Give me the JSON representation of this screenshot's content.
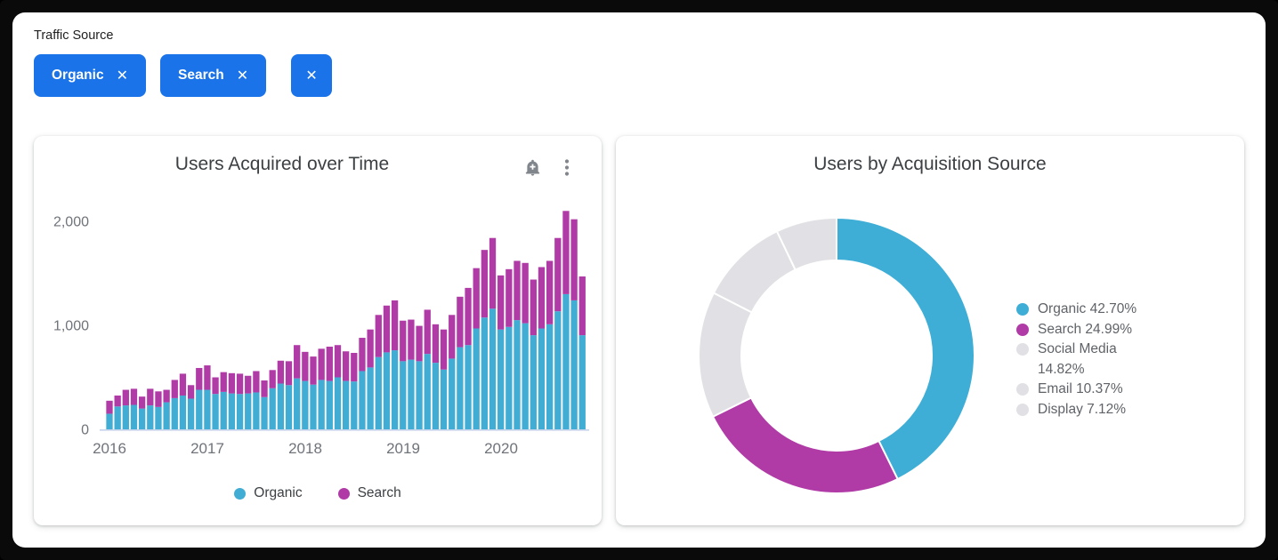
{
  "filter": {
    "label": "Traffic Source",
    "chips": [
      {
        "label": "Organic",
        "close": "✕"
      },
      {
        "label": "Search",
        "close": "✕"
      }
    ],
    "clear_chip_close": "✕"
  },
  "bar_card": {
    "title": "Users Acquired over Time",
    "icons": {
      "alert": "add-alert-bell",
      "menu": "kebab-menu"
    },
    "y_ticks": [
      "0",
      "1,000",
      "2,000"
    ],
    "x_ticks": [
      "2016",
      "2017",
      "2018",
      "2019",
      "2020"
    ],
    "legend": [
      {
        "label": "Organic",
        "color": "#41add4"
      },
      {
        "label": "Search",
        "color": "#b03ba6"
      }
    ]
  },
  "donut_card": {
    "title": "Users by Acquisition Source",
    "legend": [
      {
        "label": "Organic 42.70%",
        "color": "#3eaed6"
      },
      {
        "label": "Search 24.99%",
        "color": "#b03ba6"
      },
      {
        "label": "Social Media 14.82%",
        "color": "#e1e0e4"
      },
      {
        "label": "Email 10.37%",
        "color": "#e1e0e4"
      },
      {
        "label": "Display 7.12%",
        "color": "#e1e0e4"
      }
    ]
  },
  "colors": {
    "chip_blue": "#1a73e8",
    "organic_teal": "#41add4",
    "search_magenta": "#b03ba6",
    "pie_gray": "#e1e0e4",
    "axis_text": "#6f737a",
    "title_text": "#3c4043",
    "icon_gray": "#80868b",
    "baseline": "#c7d2eb"
  },
  "chart_data": [
    {
      "type": "bar",
      "stacked": true,
      "title": "Users Acquired over Time",
      "xlabel": "",
      "ylabel": "",
      "ylim": [
        0,
        2200
      ],
      "yticks": [
        0,
        1000,
        2000
      ],
      "grid": false,
      "legend_position": "bottom",
      "x": [
        "2016-01",
        "2016-02",
        "2016-03",
        "2016-04",
        "2016-05",
        "2016-06",
        "2016-07",
        "2016-08",
        "2016-09",
        "2016-10",
        "2016-11",
        "2016-12",
        "2017-01",
        "2017-02",
        "2017-03",
        "2017-04",
        "2017-05",
        "2017-06",
        "2017-07",
        "2017-08",
        "2017-09",
        "2017-10",
        "2017-11",
        "2017-12",
        "2018-01",
        "2018-02",
        "2018-03",
        "2018-04",
        "2018-05",
        "2018-06",
        "2018-07",
        "2018-08",
        "2018-09",
        "2018-10",
        "2018-11",
        "2018-12",
        "2019-01",
        "2019-02",
        "2019-03",
        "2019-04",
        "2019-05",
        "2019-06",
        "2019-07",
        "2019-08",
        "2019-09",
        "2019-10",
        "2019-11",
        "2019-12",
        "2020-01",
        "2020-02",
        "2020-03",
        "2020-04",
        "2020-05",
        "2020-06",
        "2020-07",
        "2020-08",
        "2020-09",
        "2020-10",
        "2020-11"
      ],
      "series": [
        {
          "name": "Organic",
          "color": "#41add4",
          "values": [
            150,
            220,
            230,
            235,
            200,
            230,
            215,
            260,
            300,
            325,
            295,
            380,
            380,
            340,
            360,
            345,
            340,
            345,
            355,
            310,
            395,
            440,
            425,
            490,
            465,
            430,
            475,
            465,
            500,
            465,
            460,
            560,
            595,
            695,
            740,
            760,
            655,
            670,
            655,
            725,
            640,
            575,
            680,
            790,
            810,
            970,
            1075,
            1160,
            960,
            985,
            1050,
            1020,
            905,
            970,
            1010,
            1135,
            1300,
            1240,
            905
          ]
        },
        {
          "name": "Search",
          "color": "#b03ba6",
          "values": [
            125,
            105,
            150,
            155,
            115,
            160,
            150,
            120,
            175,
            210,
            130,
            210,
            235,
            160,
            190,
            195,
            195,
            170,
            205,
            160,
            175,
            220,
            230,
            320,
            280,
            270,
            300,
            330,
            310,
            285,
            275,
            320,
            365,
            405,
            450,
            480,
            390,
            385,
            340,
            425,
            370,
            385,
            420,
            485,
            550,
            580,
            650,
            680,
            520,
            555,
            570,
            580,
            535,
            590,
            610,
            705,
            800,
            780,
            565
          ]
        }
      ],
      "year_tick_positions": [
        "2016",
        "2017",
        "2018",
        "2019",
        "2020"
      ]
    },
    {
      "type": "pie",
      "title": "Users by Acquisition Source",
      "donut": true,
      "start_angle_deg": -90,
      "direction": "clockwise",
      "categories": [
        "Organic",
        "Search",
        "Social Media",
        "Email",
        "Display"
      ],
      "values": [
        42.7,
        24.99,
        14.82,
        10.37,
        7.12
      ],
      "colors": [
        "#3eaed6",
        "#b03ba6",
        "#e1e0e4",
        "#e1e0e4",
        "#e1e0e4"
      ],
      "legend_position": "right"
    }
  ]
}
